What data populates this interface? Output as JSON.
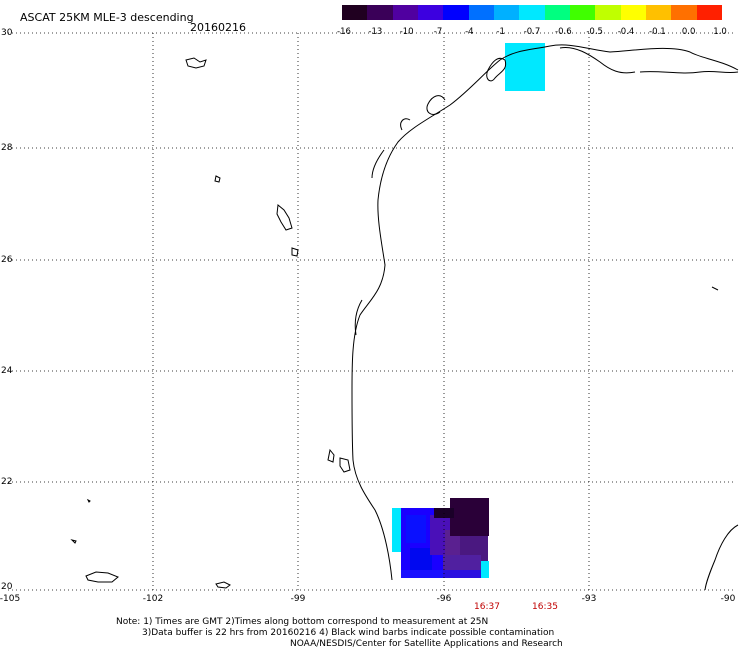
{
  "header": {
    "title": "ASCAT 25KM MLE-3 descending",
    "date": "20160216"
  },
  "colorbar": {
    "labels": [
      "-16",
      "-13",
      "-10",
      "-7",
      "-4",
      "-1",
      "-0.7",
      "-0.6",
      "-0.5",
      "-0.4",
      "-0.1",
      "0.0",
      "1.0"
    ],
    "colors": [
      "#200020",
      "#3a0058",
      "#5000a0",
      "#3c00e0",
      "#0000ff",
      "#0070ff",
      "#00b0ff",
      "#00e8ff",
      "#00ff80",
      "#40ff00",
      "#c0ff00",
      "#ffff00",
      "#ffc000",
      "#ff7000",
      "#ff2000"
    ]
  },
  "map": {
    "lat_range": [
      20,
      30
    ],
    "lon_range": [
      -105,
      -90
    ],
    "y_labels": [
      "30",
      "28",
      "26",
      "24",
      "22",
      "20"
    ],
    "x_labels": [
      "-105",
      "-102",
      "-99",
      "-96",
      "-93",
      "-90"
    ]
  },
  "times": [
    "16:37",
    "16:35"
  ],
  "notes": {
    "line1": "Note: 1) Times are GMT 2)Times along bottom correspond to measurement at 25N",
    "line2": "3)Data buffer is 22 hrs from 20160216 4) Black wind barbs indicate possible contamination",
    "line3": "NOAA/NESDIS/Center for Satellite Applications and Research"
  }
}
